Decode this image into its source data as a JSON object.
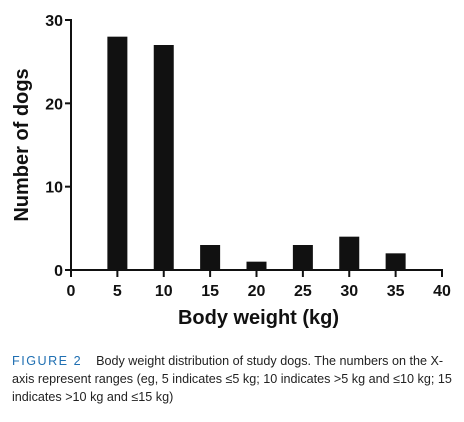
{
  "chart_data": {
    "type": "bar",
    "categories": [
      "5",
      "10",
      "15",
      "20",
      "25",
      "30",
      "35"
    ],
    "x": [
      5,
      10,
      15,
      20,
      25,
      30,
      35
    ],
    "values": [
      28,
      27,
      3,
      1,
      3,
      4,
      2
    ],
    "xlabel": "Body weight (kg)",
    "ylabel": "Number of dogs",
    "xlim": [
      0,
      40
    ],
    "ylim": [
      0,
      30
    ],
    "xticks": [
      "0",
      "5",
      "10",
      "15",
      "20",
      "25",
      "30",
      "35",
      "40"
    ],
    "yticks": [
      "0",
      "10",
      "20",
      "30"
    ],
    "grid": false,
    "bar_color": "#111111"
  },
  "caption": {
    "label": "FIGURE 2",
    "text": "Body weight distribution of study dogs. The numbers on the X-axis represent ranges (eg, 5 indicates ≤5 kg; 10 indicates >5 kg and ≤10 kg; 15 indicates >10 kg and ≤15 kg)"
  }
}
